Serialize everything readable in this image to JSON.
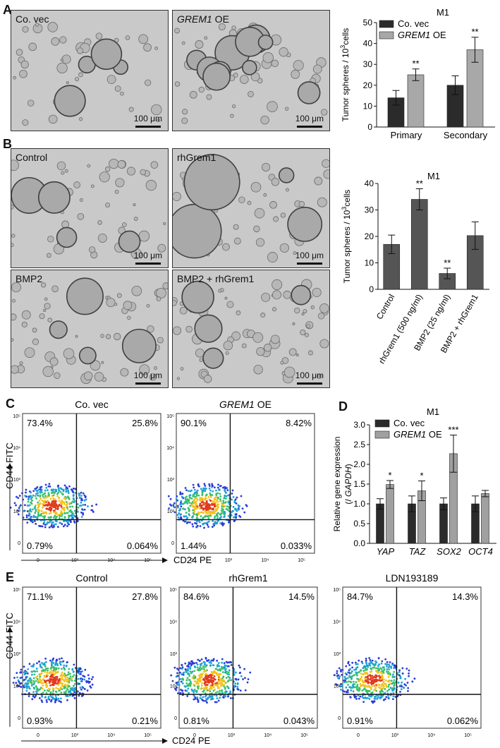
{
  "panels": {
    "A": {
      "letter": "A",
      "images": [
        {
          "label": "Co. vec",
          "scalebar": "100 μm"
        },
        {
          "label": "GREM1",
          "label_suffix": " OE",
          "scalebar": "100 μm"
        }
      ]
    },
    "B": {
      "letter": "B",
      "images": [
        {
          "label": "Control",
          "scalebar": "100 μm"
        },
        {
          "label": "rhGrem1",
          "scalebar": "100 μm"
        },
        {
          "label": "BMP2",
          "scalebar": "100 μm"
        },
        {
          "label": "BMP2 + rhGrem1",
          "scalebar": "100 μm"
        }
      ]
    },
    "C": {
      "letter": "C",
      "xlabel": "CD24 PE",
      "ylabel": "CD44 FITC",
      "plots": [
        {
          "title": "Co. vec",
          "title_italic": "",
          "ul": "73.4%",
          "ur": "25.8%",
          "ll": "0.79%",
          "lr": "0.064%"
        },
        {
          "title": " OE",
          "title_italic": "GREM1",
          "ul": "90.1%",
          "ur": "8.42%",
          "ll": "1.44%",
          "lr": "0.033%"
        }
      ]
    },
    "D": {
      "letter": "D"
    },
    "E": {
      "letter": "E",
      "xlabel": "CD24 PE",
      "ylabel": "CD44 FITC",
      "plots": [
        {
          "title": "Control",
          "ul": "71.1%",
          "ur": "27.8%",
          "ll": "0.93%",
          "lr": "0.21%"
        },
        {
          "title": "rhGrem1",
          "ul": "84.6%",
          "ur": "14.5%",
          "ll": "0.81%",
          "lr": "0.043%"
        },
        {
          "title": "LDN193189",
          "ul": "84.7%",
          "ur": "14.3%",
          "ll": "0.91%",
          "lr": "0.062%"
        }
      ]
    }
  },
  "chart_data": [
    {
      "id": "A-bar",
      "type": "bar",
      "title": "M1",
      "ylabel": "Tumor spheres / 10³cells",
      "categories": [
        "Primary",
        "Secondary"
      ],
      "ylim": [
        0,
        50
      ],
      "yticks": [
        0,
        10,
        20,
        30,
        40,
        50
      ],
      "series": [
        {
          "name": "Co. vec",
          "color": "#2b2b2b",
          "values": [
            14,
            20
          ],
          "errors": [
            3.5,
            4.5
          ],
          "sig": [
            "",
            ""
          ]
        },
        {
          "name": "GREM1 OE",
          "color": "#a8a8a8",
          "values": [
            25,
            37
          ],
          "errors": [
            2.8,
            6
          ],
          "sig": [
            "**",
            "**"
          ]
        }
      ],
      "legend": "top-left"
    },
    {
      "id": "B-bar",
      "type": "bar",
      "title": "M1",
      "ylabel": "Tumor spheres / 10³cells",
      "categories": [
        "Control",
        "rhGrem1 (500 ng/ml)",
        "BMP2 (25 ng/ml)",
        "BMP2 + rhGrem1"
      ],
      "ylim": [
        0,
        40
      ],
      "yticks": [
        0,
        10,
        20,
        30,
        40
      ],
      "series": [
        {
          "color": "#555555",
          "values": [
            17,
            34,
            6,
            20.3
          ],
          "errors": [
            3.5,
            4,
            2,
            5.2
          ],
          "sig": [
            "",
            "**",
            "**",
            ""
          ]
        }
      ]
    },
    {
      "id": "D-bar",
      "type": "bar",
      "title": "M1",
      "ylabel": "Relative gene expression (/ GAPDH)",
      "categories": [
        "YAP",
        "TAZ",
        "SOX2",
        "OCT4"
      ],
      "ylim": [
        0,
        3.0
      ],
      "yticks": [
        0.0,
        0.5,
        1.0,
        1.5,
        2.0,
        2.5,
        3.0
      ],
      "series": [
        {
          "name": "Co. vec",
          "color": "#2b2b2b",
          "values": [
            1.0,
            1.0,
            1.0,
            1.0
          ],
          "errors": [
            0.13,
            0.2,
            0.15,
            0.2
          ],
          "sig": [
            "",
            "",
            "",
            ""
          ]
        },
        {
          "name": "GREM1 OE",
          "color": "#a0a0a0",
          "values": [
            1.49,
            1.33,
            2.27,
            1.26
          ],
          "errors": [
            0.1,
            0.25,
            0.47,
            0.08
          ],
          "sig": [
            "*",
            "*",
            "***",
            ""
          ]
        }
      ],
      "legend": "top-left"
    }
  ]
}
